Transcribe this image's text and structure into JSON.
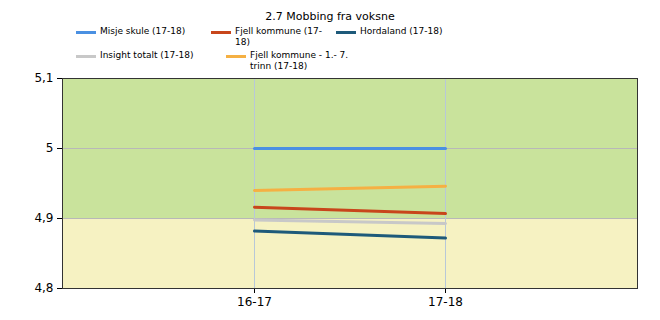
{
  "chart_data": {
    "type": "line",
    "title": "2.7 Mobbing fra voksne",
    "categories": [
      "16-17",
      "17-18"
    ],
    "series": [
      {
        "name": "Misje skule (17-18)",
        "color": "#4a90e2",
        "values": [
          5.0,
          5.0
        ]
      },
      {
        "name": "Fjell kommune (17-18)",
        "color": "#c8461b",
        "values": [
          4.916,
          4.907
        ]
      },
      {
        "name": "Hordaland (17-18)",
        "color": "#1e5a7a",
        "values": [
          4.882,
          4.872
        ]
      },
      {
        "name": "Insight totalt (17-18)",
        "color": "#c8c8c8",
        "values": [
          4.898,
          4.893
        ]
      },
      {
        "name": "Fjell kommune - 1.- 7. trinn (17-18)",
        "color": "#f5b043",
        "values": [
          4.94,
          4.946
        ]
      }
    ],
    "ylim": [
      4.8,
      5.1
    ],
    "yticks": [
      {
        "value": 4.8,
        "label": "4,8"
      },
      {
        "value": 4.9,
        "label": "4,9"
      },
      5,
      {
        "value": 5.1,
        "label": "5,1"
      }
    ],
    "bands": [
      {
        "from": 4.9,
        "to": 5.1,
        "color": "#c9e39c"
      },
      {
        "from": 4.8,
        "to": 4.9,
        "color": "#f6f2c2"
      }
    ],
    "grid": true,
    "legend": "top"
  }
}
